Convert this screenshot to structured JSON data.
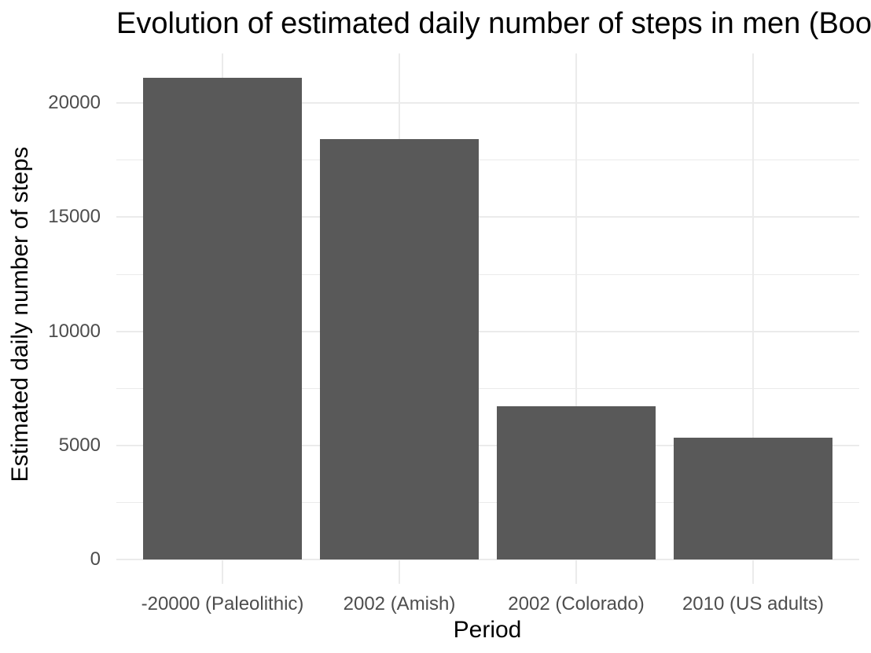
{
  "chart_data": {
    "type": "bar",
    "title": "Evolution of estimated daily number of steps in men (Boo",
    "xlabel": "Period",
    "ylabel": "Estimated daily number of steps",
    "categories": [
      "-20000 (Paleolithic)",
      "2002 (Amish)",
      "2002 (Colorado)",
      "2010 (US adults)"
    ],
    "values": [
      21120,
      18425,
      6733,
      5340
    ],
    "yticks_major": [
      0,
      5000,
      10000,
      15000,
      20000
    ],
    "yticks_minor": [
      2500,
      7500,
      12500,
      17500
    ],
    "ylim": [
      -1056,
      22176
    ],
    "grid": "on",
    "legend": "none",
    "bar_color": "#595959",
    "grid_color": "#ebebeb",
    "tick_label_color": "#4d4d4d",
    "title_color": "#000000",
    "background_color": "#ffffff"
  }
}
